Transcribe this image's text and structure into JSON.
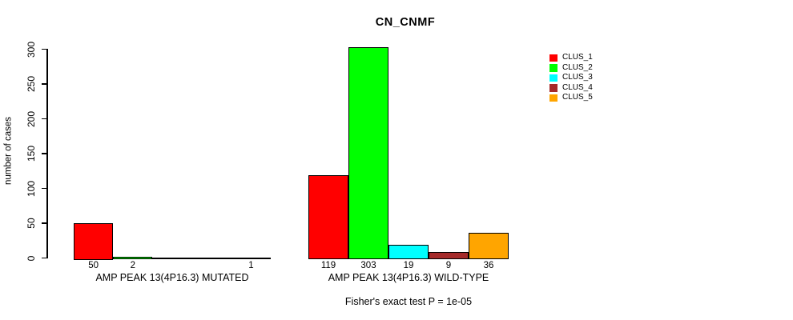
{
  "chart_data": {
    "type": "bar",
    "title": "CN_CNMF",
    "ylabel": "number of cases",
    "ylim": [
      0,
      300
    ],
    "yticks": [
      0,
      50,
      100,
      150,
      200,
      250,
      300
    ],
    "grid": false,
    "legend_position": "right",
    "categories": [
      "AMP PEAK 13(4P16.3) MUTATED",
      "AMP PEAK 13(4P16.3) WILD-TYPE"
    ],
    "series": [
      {
        "name": "CLUS_1",
        "color": "#FF0000",
        "values": [
          50,
          119
        ]
      },
      {
        "name": "CLUS_2",
        "color": "#00FF00",
        "values": [
          2,
          303
        ]
      },
      {
        "name": "CLUS_3",
        "color": "#00FFFF",
        "values": [
          0,
          19
        ]
      },
      {
        "name": "CLUS_4",
        "color": "#A52A2A",
        "values": [
          0,
          9
        ]
      },
      {
        "name": "CLUS_5",
        "color": "#FFA500",
        "values": [
          1,
          36
        ]
      }
    ],
    "zero_value_labels_hidden": true,
    "annotation": "Fisher's exact test P = 1e-05"
  }
}
